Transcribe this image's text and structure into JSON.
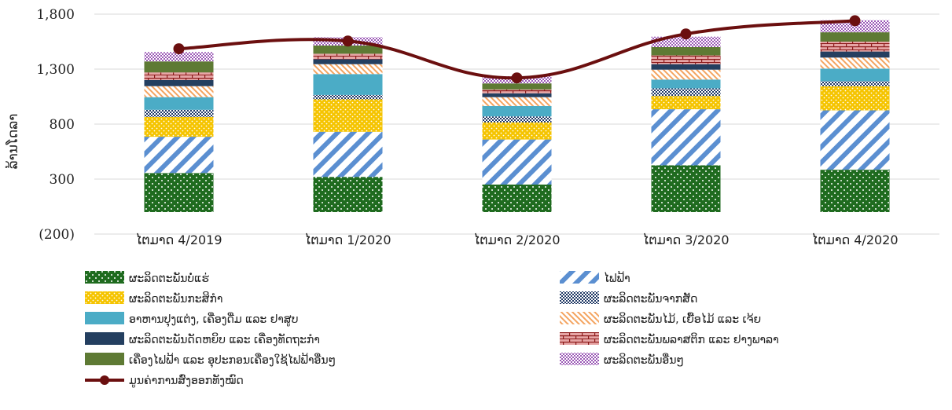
{
  "chart_data": {
    "type": "bar",
    "stacked": true,
    "ylabel": "ລ້ານໂດລາ",
    "ylim": [
      -200,
      1800
    ],
    "yticks": [
      "(200)",
      "300",
      "800",
      "1,300",
      "1,800"
    ],
    "ytick_values": [
      -200,
      300,
      800,
      1300,
      1800
    ],
    "gridlines": true,
    "legend_position": "bottom",
    "categories": [
      "ໄຕມາດ 4/2019",
      "ໄຕມາດ 1/2020",
      "ໄຕມາດ 2/2020",
      "ໄຕມາດ 3/2020",
      "ໄຕມາດ 4/2020"
    ],
    "series": [
      {
        "name": "ຜະລິດຕະພັນບໍ່ແຮ່",
        "color": "#1f6b1f",
        "pattern": "dots",
        "values": [
          355,
          320,
          250,
          425,
          385
        ]
      },
      {
        "name": "ໄຟຟ້າ",
        "color": "#5b8fd1",
        "pattern": "diagonal-stripes",
        "values": [
          330,
          410,
          410,
          510,
          540
        ]
      },
      {
        "name": "ຜະລິດຕະພັນກະສິກຳ",
        "color": "#f5c400",
        "pattern": "dots",
        "values": [
          180,
          295,
          155,
          120,
          220
        ]
      },
      {
        "name": "ຜະລິດຕະພັນຈາກສັດ",
        "color": "#1f3864",
        "pattern": "checker",
        "values": [
          65,
          40,
          55,
          70,
          45
        ]
      },
      {
        "name": "ອາຫານປຸງແຕ່ງ, ເຄື່ອງດື່ມ ແລະ ຢາສູບ",
        "color": "#4bacc6",
        "pattern": "solid",
        "values": [
          115,
          190,
          95,
          80,
          115
        ]
      },
      {
        "name": "ຜະລິດຕະພັນໄມ້, ເຍື້ອໄມ້ ແລະ ເຈ້ຍ",
        "color": "#f4a460",
        "pattern": "diagonal-lines",
        "values": [
          100,
          90,
          80,
          90,
          100
        ]
      },
      {
        "name": "ຜະລິດຕະພັນດັດຫຍິບ ແລະ ເຄື່ອງທັດຖະກຳ",
        "color": "#243f60",
        "pattern": "solid",
        "values": [
          55,
          45,
          35,
          50,
          55
        ]
      },
      {
        "name": "ຜະລິດຕະພັນພລາສຕິກ ແລະ ຢາງພາລາ",
        "color": "#e6a5a5",
        "pattern": "bricks",
        "values": [
          70,
          50,
          35,
          80,
          90
        ]
      },
      {
        "name": "ເຄື່ອງໄຟຟ້າ ແລະ ອຸປະກອນເຄື່ອງໃຊ້ໄຟຟ້າອື່ນໆ",
        "color": "#5e7a34",
        "pattern": "solid",
        "values": [
          100,
          75,
          55,
          75,
          85
        ]
      },
      {
        "name": "ຜະລິດຕະພັນອື່ນໆ",
        "color": "#9b59b6",
        "pattern": "checker",
        "values": [
          85,
          75,
          65,
          95,
          110
        ]
      }
    ],
    "line": {
      "name": "ມູນຄ່າການສົ່ງອອກທັງໝົດ",
      "color": "#6b0f0f",
      "values": [
        1485,
        1555,
        1220,
        1620,
        1740
      ]
    }
  }
}
